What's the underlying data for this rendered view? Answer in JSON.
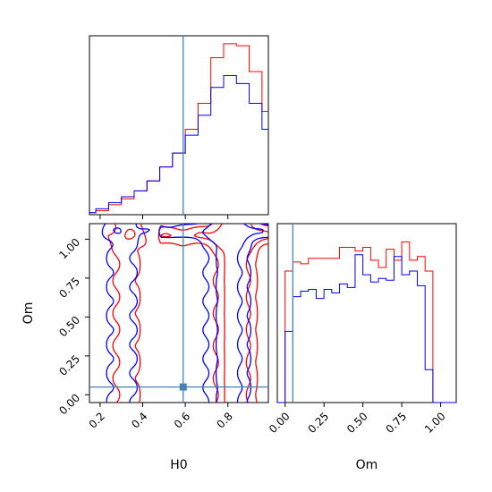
{
  "chart_data": {
    "type": "corner",
    "parameters": [
      "H0",
      "Om"
    ],
    "truth": {
      "H0": 0.59,
      "Om": 0.05
    },
    "colors": {
      "red": "#ff0000",
      "blue": "#0000ff",
      "truth": "#4682b4"
    },
    "h0_histogram": {
      "type": "histogram",
      "xlim": [
        0.15,
        0.99
      ],
      "bin_edges": [
        0.06,
        0.12,
        0.18,
        0.24,
        0.3,
        0.36,
        0.42,
        0.48,
        0.54,
        0.6,
        0.66,
        0.72,
        0.78,
        0.84,
        0.9,
        0.96,
        1.02
      ],
      "series": [
        {
          "color": "red",
          "values": [
            0.0,
            0.01,
            0.02,
            0.05,
            0.08,
            0.12,
            0.17,
            0.24,
            0.31,
            0.43,
            0.56,
            0.79,
            0.86,
            0.85,
            0.72,
            0.52,
            0.22
          ]
        },
        {
          "color": "blue",
          "values": [
            0.0,
            0.01,
            0.03,
            0.06,
            0.09,
            0.12,
            0.17,
            0.24,
            0.31,
            0.4,
            0.5,
            0.64,
            0.7,
            0.66,
            0.56,
            0.43,
            0.16
          ]
        }
      ],
      "xticks": [
        "0.2",
        "0.4",
        "0.6",
        "0.8"
      ]
    },
    "om_histogram": {
      "type": "histogram",
      "xlim": [
        -0.05,
        1.1
      ],
      "bin_edges": [
        0.0,
        0.05,
        0.1,
        0.15,
        0.2,
        0.25,
        0.3,
        0.35,
        0.4,
        0.45,
        0.5,
        0.55,
        0.6,
        0.65,
        0.7,
        0.75,
        0.8,
        0.85,
        0.9,
        0.95,
        1.0
      ],
      "series": [
        {
          "color": "red",
          "values": [
            0.72,
            0.77,
            0.76,
            0.79,
            0.79,
            0.79,
            0.79,
            0.85,
            0.85,
            0.83,
            0.85,
            0.78,
            0.74,
            0.84,
            0.78,
            0.88,
            0.78,
            0.8,
            0.72,
            0.0
          ]
        },
        {
          "color": "blue",
          "values": [
            0.39,
            0.58,
            0.61,
            0.62,
            0.57,
            0.62,
            0.6,
            0.65,
            0.63,
            0.81,
            0.7,
            0.66,
            0.68,
            0.67,
            0.8,
            0.7,
            0.72,
            0.64,
            0.18,
            0.0
          ]
        }
      ],
      "xticks": [
        "0.00",
        "0.25",
        "0.50",
        "0.75",
        "1.00"
      ],
      "xlabel": "Om"
    },
    "joint": {
      "type": "contour",
      "xlim": [
        0.15,
        0.99
      ],
      "ylim": [
        -0.05,
        1.1
      ],
      "xlabel": "H0",
      "ylabel": "Om",
      "xticks": [
        "0.2",
        "0.4",
        "0.6",
        "0.8"
      ],
      "yticks": [
        "0.00",
        "0.25",
        "0.50",
        "0.75",
        "1.00"
      ],
      "series": [
        "red",
        "blue"
      ]
    }
  }
}
